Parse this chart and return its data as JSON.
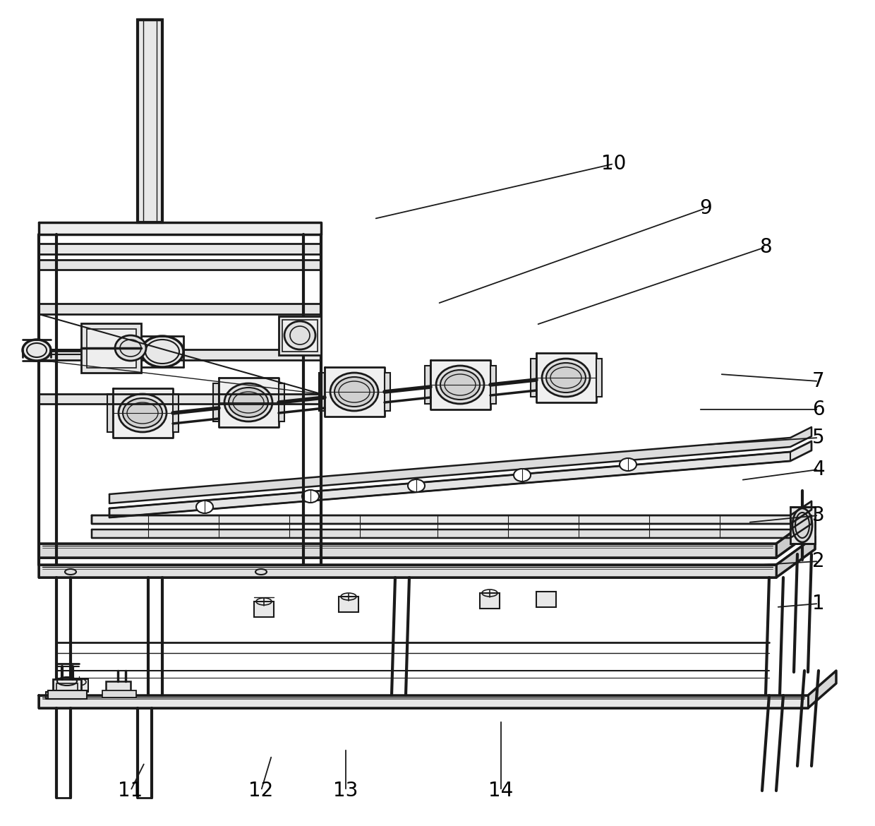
{
  "background_color": "#ffffff",
  "line_color": "#1a1a1a",
  "label_color": "#000000",
  "figure_width": 12.4,
  "figure_height": 11.7,
  "dpi": 100,
  "annotation_fontsize": 20,
  "label_data": [
    [
      "10",
      [
        530,
        310
      ],
      [
        870,
        232
      ]
    ],
    [
      "9",
      [
        620,
        430
      ],
      [
        1000,
        295
      ]
    ],
    [
      "8",
      [
        760,
        460
      ],
      [
        1085,
        350
      ]
    ],
    [
      "7",
      [
        1020,
        530
      ],
      [
        1160,
        540
      ]
    ],
    [
      "6",
      [
        990,
        580
      ],
      [
        1160,
        580
      ]
    ],
    [
      "5",
      [
        1000,
        630
      ],
      [
        1160,
        620
      ]
    ],
    [
      "4",
      [
        1050,
        680
      ],
      [
        1160,
        665
      ]
    ],
    [
      "3",
      [
        1060,
        740
      ],
      [
        1160,
        730
      ]
    ],
    [
      "2",
      [
        1080,
        800
      ],
      [
        1160,
        795
      ]
    ],
    [
      "1",
      [
        1100,
        860
      ],
      [
        1160,
        855
      ]
    ],
    [
      "11",
      [
        205,
        1080
      ],
      [
        185,
        1120
      ]
    ],
    [
      "12",
      [
        385,
        1070
      ],
      [
        370,
        1120
      ]
    ],
    [
      "13",
      [
        490,
        1060
      ],
      [
        490,
        1120
      ]
    ],
    [
      "14",
      [
        710,
        1020
      ],
      [
        710,
        1120
      ]
    ]
  ]
}
